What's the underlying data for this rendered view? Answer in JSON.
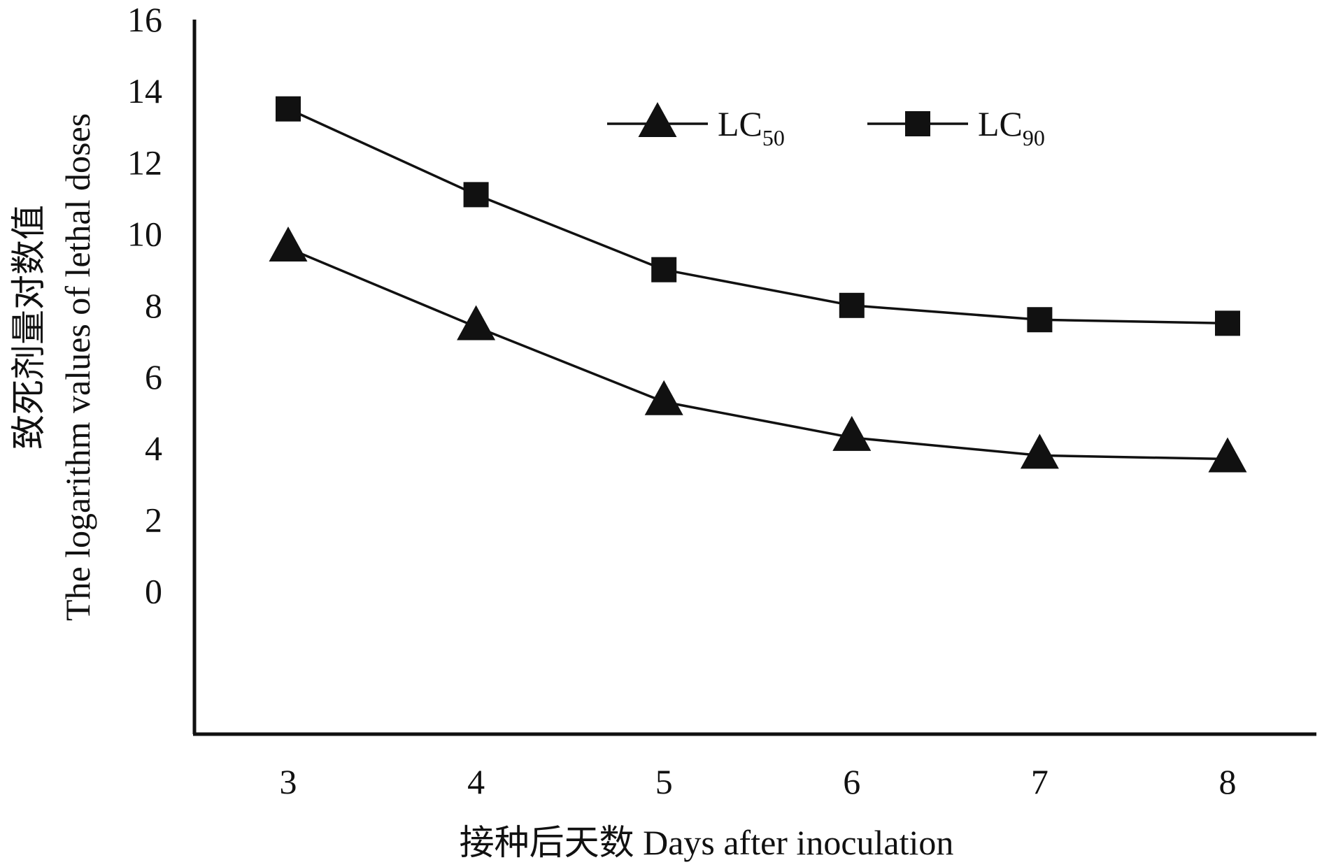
{
  "chart_data": {
    "type": "line",
    "x": [
      3,
      4,
      5,
      6,
      7,
      8
    ],
    "xlabel": "接种后天数  Days after inoculation",
    "ylabel_lines": [
      "致死剂量对数值",
      "The logarithm values of lethal doses"
    ],
    "yticks": [
      0,
      2,
      4,
      6,
      8,
      10,
      12,
      14,
      16
    ],
    "ylim": [
      -4,
      16
    ],
    "grid": false,
    "legend_position": "top-right",
    "series": [
      {
        "name": "LC50",
        "label_main": "LC",
        "label_sub": "50",
        "marker": "triangle",
        "values": [
          9.6,
          7.4,
          5.3,
          4.3,
          3.8,
          3.7
        ]
      },
      {
        "name": "LC90",
        "label_main": "LC",
        "label_sub": "90",
        "marker": "square",
        "values": [
          13.5,
          11.1,
          9.0,
          8.0,
          7.6,
          7.5
        ]
      }
    ],
    "colors": {
      "line": "#111111",
      "marker": "#111111",
      "axis": "#111111"
    }
  }
}
